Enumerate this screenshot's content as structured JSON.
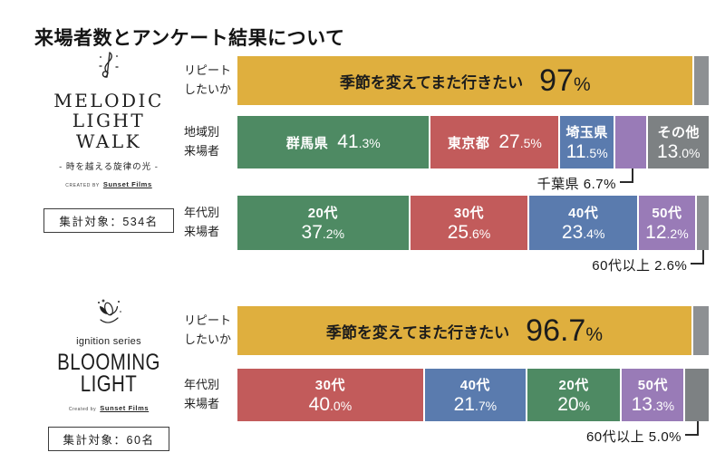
{
  "page_title": "来場者数とアンケート結果について",
  "palette": {
    "gold": "#DFAF3E",
    "green": "#4E8A63",
    "red": "#C25B5B",
    "blue": "#5A7BAE",
    "purple": "#997BB7",
    "gray": "#7D8183",
    "cap_gray": "#8D9093"
  },
  "sections": [
    {
      "name": "MELODIC LIGHT WALK",
      "logo": {
        "icon": "treble-clef-emblem",
        "title_lines": [
          "MELODIC",
          "LIGHT",
          "WALK"
        ],
        "subtitle": "- 時を越える旋律の光 -",
        "credit_prefix": "CREATED BY",
        "credit_name": "Sunset Films",
        "sample_label": "集計対象：534名"
      },
      "rows": [
        {
          "kind": "highlight",
          "label_lines": [
            "リピート",
            "したいか"
          ],
          "statement": "季節を変えてまた行きたい",
          "pct_main": "97",
          "pct_small": "%",
          "value": 97,
          "rest": 3
        },
        {
          "kind": "stacked",
          "label_lines": [
            "地域別",
            "来場者"
          ],
          "segments": [
            {
              "label": "群馬県",
              "pct_main": "41",
              "pct_small": ".3%",
              "value": 41.3,
              "color": "green",
              "text": "inline"
            },
            {
              "label": "東京都",
              "pct_main": "27",
              "pct_small": ".5%",
              "value": 27.5,
              "color": "red",
              "text": "inline"
            },
            {
              "label": "埼玉県",
              "pct_main": "11",
              "pct_small": ".5%",
              "value": 11.5,
              "color": "blue",
              "text": "col"
            },
            {
              "label": "千葉県",
              "value": 6.7,
              "color": "purple",
              "text": "none",
              "callout": "千葉県 6.7%"
            },
            {
              "label": "その他",
              "pct_main": "13",
              "pct_small": ".0%",
              "value": 13.0,
              "color": "gray",
              "text": "col"
            }
          ]
        },
        {
          "kind": "stacked",
          "label_lines": [
            "年代別",
            "来場者"
          ],
          "segments": [
            {
              "label": "20代",
              "pct_main": "37",
              "pct_small": ".2%",
              "value": 37.2,
              "color": "green",
              "text": "col"
            },
            {
              "label": "30代",
              "pct_main": "25",
              "pct_small": ".6%",
              "value": 25.6,
              "color": "red",
              "text": "col"
            },
            {
              "label": "40代",
              "pct_main": "23",
              "pct_small": ".4%",
              "value": 23.4,
              "color": "blue",
              "text": "col"
            },
            {
              "label": "50代",
              "pct_main": "12",
              "pct_small": ".2%",
              "value": 12.2,
              "color": "purple",
              "text": "col"
            },
            {
              "label": "60代以上",
              "value": 2.6,
              "color": "cap_gray",
              "text": "none",
              "callout": "60代以上 2.6%"
            }
          ]
        }
      ]
    },
    {
      "name": "BLOOMING LIGHT",
      "logo": {
        "icon": "blooming-flower-emblem",
        "series_label": "ignition series",
        "title_lines": [
          "BLOOMING",
          "LIGHT"
        ],
        "credit_prefix": "Created by",
        "credit_name": "Sunset Films",
        "sample_label": "集計対象：60名"
      },
      "rows": [
        {
          "kind": "highlight",
          "label_lines": [
            "リピート",
            "したいか"
          ],
          "statement": "季節を変えてまた行きたい",
          "pct_main": "96.7",
          "pct_small": "%",
          "value": 96.7,
          "rest": 3.3
        },
        {
          "kind": "stacked",
          "label_lines": [
            "年代別",
            "来場者"
          ],
          "segments": [
            {
              "label": "30代",
              "pct_main": "40",
              "pct_small": ".0%",
              "value": 40.0,
              "color": "red",
              "text": "col"
            },
            {
              "label": "40代",
              "pct_main": "21",
              "pct_small": ".7%",
              "value": 21.7,
              "color": "blue",
              "text": "col"
            },
            {
              "label": "20代",
              "pct_main": "20",
              "pct_small": "%",
              "value": 20,
              "color": "green",
              "text": "col"
            },
            {
              "label": "50代",
              "pct_main": "13",
              "pct_small": ".3%",
              "value": 13.3,
              "color": "purple",
              "text": "col"
            },
            {
              "label": "60代以上",
              "value": 5.0,
              "color": "gray",
              "text": "none",
              "callout": "60代以上 5.0%"
            }
          ]
        }
      ]
    }
  ],
  "chart_data": [
    {
      "type": "bar",
      "orientation": "horizontal-stacked",
      "title": "MELODIC LIGHT WALK リピートしたいか",
      "categories": [
        "季節を変えてまた行きたい",
        "その他"
      ],
      "values": [
        97,
        3
      ],
      "unit": "%",
      "sample_size": 534,
      "segment_colors": [
        "gold",
        "cap_gray"
      ]
    },
    {
      "type": "bar",
      "orientation": "horizontal-stacked",
      "title": "MELODIC LIGHT WALK 地域別来場者",
      "categories": [
        "群馬県",
        "東京都",
        "埼玉県",
        "千葉県",
        "その他"
      ],
      "values": [
        41.3,
        27.5,
        11.5,
        6.7,
        13.0
      ],
      "unit": "%",
      "sample_size": 534,
      "segment_colors": [
        "green",
        "red",
        "blue",
        "purple",
        "gray"
      ]
    },
    {
      "type": "bar",
      "orientation": "horizontal-stacked",
      "title": "MELODIC LIGHT WALK 年代別来場者",
      "categories": [
        "20代",
        "30代",
        "40代",
        "50代",
        "60代以上"
      ],
      "values": [
        37.2,
        25.6,
        23.4,
        12.2,
        2.6
      ],
      "unit": "%",
      "sample_size": 534,
      "segment_colors": [
        "green",
        "red",
        "blue",
        "purple",
        "cap_gray"
      ]
    },
    {
      "type": "bar",
      "orientation": "horizontal-stacked",
      "title": "BLOOMING LIGHT リピートしたいか",
      "categories": [
        "季節を変えてまた行きたい",
        "その他"
      ],
      "values": [
        96.7,
        3.3
      ],
      "unit": "%",
      "sample_size": 60,
      "segment_colors": [
        "gold",
        "cap_gray"
      ]
    },
    {
      "type": "bar",
      "orientation": "horizontal-stacked",
      "title": "BLOOMING LIGHT 年代別来場者",
      "categories": [
        "30代",
        "40代",
        "20代",
        "50代",
        "60代以上"
      ],
      "values": [
        40.0,
        21.7,
        20,
        13.3,
        5.0
      ],
      "unit": "%",
      "sample_size": 60,
      "segment_colors": [
        "red",
        "blue",
        "green",
        "purple",
        "gray"
      ]
    }
  ]
}
